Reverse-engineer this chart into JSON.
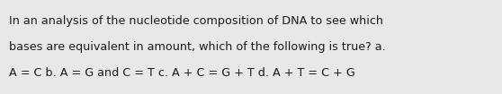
{
  "lines": [
    "In an analysis of the nucleotide composition of DNA to see which",
    "bases are equivalent in amount, which of the following is true? a.",
    "A = C b. A = G and C = T c. A + C = G + T d. A + T = C + G"
  ],
  "background_color": "#e8e8e8",
  "text_color": "#1a1a1a",
  "font_size": 9.2,
  "font_family": "DejaVu Sans",
  "font_weight": "normal",
  "figwidth": 5.58,
  "figheight": 1.05,
  "dpi": 100
}
